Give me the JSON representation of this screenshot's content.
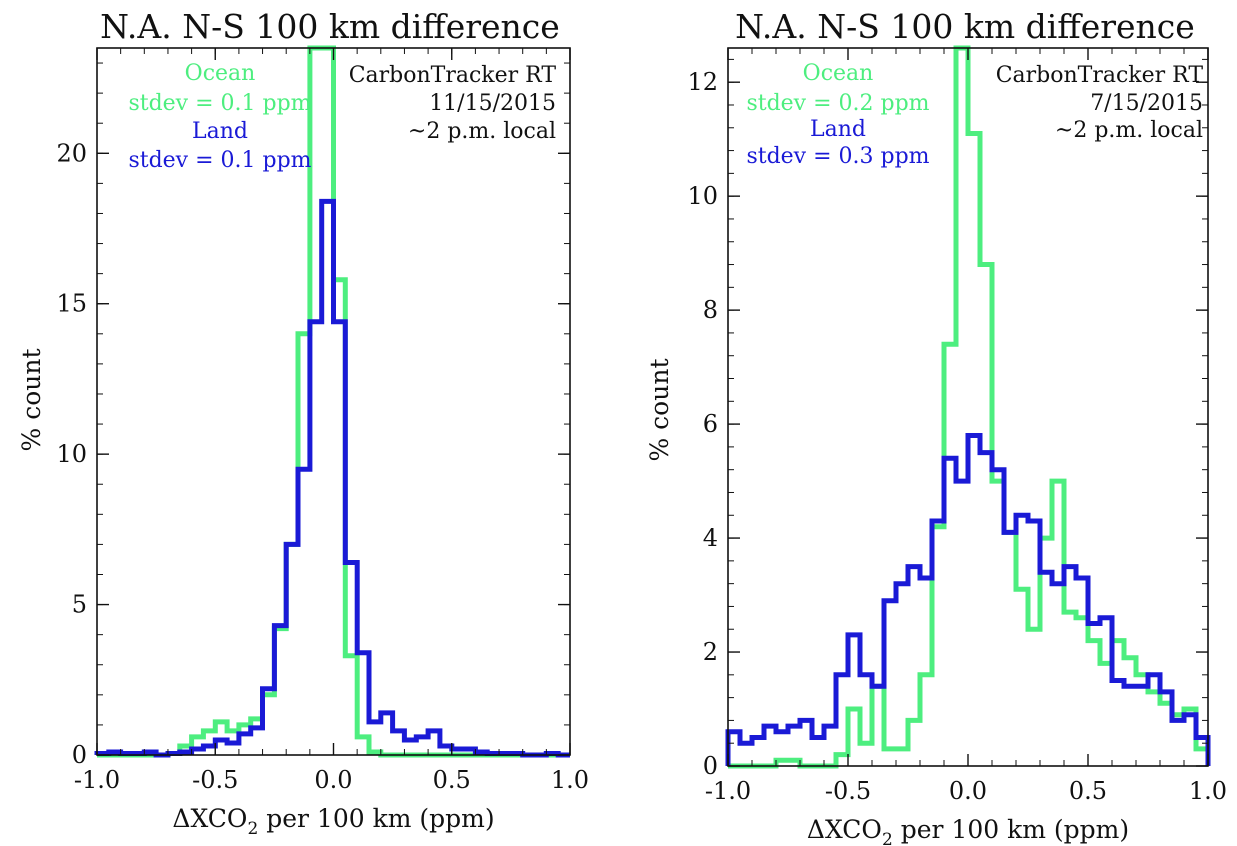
{
  "colors": {
    "ocean": "#4dee7f",
    "land": "#1a1ad6",
    "axis": "#111111"
  },
  "chart_data": [
    {
      "type": "line",
      "step": true,
      "title": "N.A. N-S 100 km difference",
      "xlabel_main": "ΔXCO",
      "xlabel_sub": "2",
      "xlabel_tail": " per 100 km (ppm)",
      "ylabel": "% count",
      "xlim": [
        -1.0,
        1.0
      ],
      "ylim": [
        0,
        23.5
      ],
      "xticks": [
        -1.0,
        -0.5,
        0.0,
        0.5,
        1.0
      ],
      "xtick_labels": [
        "-1.0",
        "-0.5",
        "0.0",
        "0.5",
        "1.0"
      ],
      "yticks": [
        0,
        5,
        10,
        15,
        20
      ],
      "ytick_labels": [
        "0",
        "5",
        "10",
        "15",
        "20"
      ],
      "annotations_left": [
        {
          "text": "Ocean",
          "series": "ocean"
        },
        {
          "text": "stdev = 0.1 ppm",
          "series": "ocean"
        },
        {
          "text": "Land",
          "series": "land"
        },
        {
          "text": "stdev = 0.1 ppm",
          "series": "land"
        }
      ],
      "annotations_right": [
        "CarbonTracker RT",
        "11/15/2015",
        "~2 p.m. local"
      ],
      "bin_edges": [
        -1.0,
        -0.95,
        -0.9,
        -0.85,
        -0.8,
        -0.75,
        -0.7,
        -0.65,
        -0.6,
        -0.55,
        -0.5,
        -0.45,
        -0.4,
        -0.35,
        -0.3,
        -0.25,
        -0.2,
        -0.15,
        -0.1,
        -0.05,
        0.0,
        0.05,
        0.1,
        0.15,
        0.2,
        0.25,
        0.3,
        0.35,
        0.4,
        0.45,
        0.5,
        0.55,
        0.6,
        0.65,
        0.7,
        0.75,
        0.8,
        0.85,
        0.9,
        0.95,
        1.0
      ],
      "series": [
        {
          "key": "ocean",
          "values": [
            0,
            0,
            0,
            0,
            0,
            0,
            0.05,
            0.3,
            0.6,
            0.8,
            1.1,
            0.8,
            1.0,
            1.2,
            2.0,
            4.2,
            7.0,
            14.0,
            23.5,
            23.5,
            15.8,
            3.3,
            0.6,
            0.1,
            0,
            0,
            0,
            0,
            0,
            0,
            0,
            0,
            0,
            0,
            0,
            0,
            0,
            0,
            0,
            0
          ]
        },
        {
          "key": "land",
          "values": [
            0.05,
            0.1,
            0.05,
            0.05,
            0.1,
            0,
            0.05,
            0.1,
            0.2,
            0.3,
            0.5,
            0.4,
            0.7,
            0.9,
            2.2,
            4.3,
            7.0,
            9.5,
            14.4,
            18.4,
            14.4,
            6.4,
            3.4,
            1.1,
            1.4,
            0.8,
            0.5,
            0.6,
            0.8,
            0.3,
            0.2,
            0.2,
            0.1,
            0.05,
            0.05,
            0.05,
            0,
            0,
            0.05,
            0
          ]
        }
      ]
    },
    {
      "type": "line",
      "step": true,
      "title": "N.A. N-S 100 km difference",
      "xlabel_main": "ΔXCO",
      "xlabel_sub": "2",
      "xlabel_tail": " per 100 km (ppm)",
      "ylabel": "% count",
      "xlim": [
        -1.0,
        1.0
      ],
      "ylim": [
        0,
        12.6
      ],
      "xticks": [
        -1.0,
        -0.5,
        0.0,
        0.5,
        1.0
      ],
      "xtick_labels": [
        "-1.0",
        "-0.5",
        "0.0",
        "0.5",
        "1.0"
      ],
      "yticks": [
        0,
        2,
        4,
        6,
        8,
        10,
        12
      ],
      "ytick_labels": [
        "0",
        "2",
        "4",
        "6",
        "8",
        "10",
        "12"
      ],
      "annotations_left": [
        {
          "text": "Ocean",
          "series": "ocean"
        },
        {
          "text": "stdev = 0.2 ppm",
          "series": "ocean"
        },
        {
          "text": "Land",
          "series": "land"
        },
        {
          "text": "stdev = 0.3 ppm",
          "series": "land"
        }
      ],
      "annotations_right": [
        "CarbonTracker RT",
        "7/15/2015",
        "~2 p.m. local"
      ],
      "bin_edges": [
        -1.0,
        -0.95,
        -0.9,
        -0.85,
        -0.8,
        -0.75,
        -0.7,
        -0.65,
        -0.6,
        -0.55,
        -0.5,
        -0.45,
        -0.4,
        -0.35,
        -0.3,
        -0.25,
        -0.2,
        -0.15,
        -0.1,
        -0.05,
        0.0,
        0.05,
        0.1,
        0.15,
        0.2,
        0.25,
        0.3,
        0.35,
        0.4,
        0.45,
        0.5,
        0.55,
        0.6,
        0.65,
        0.7,
        0.75,
        0.8,
        0.85,
        0.9,
        0.95,
        1.0
      ],
      "series": [
        {
          "key": "ocean",
          "values": [
            0,
            0,
            0,
            0,
            0.1,
            0.1,
            0,
            0,
            0,
            0.2,
            1.0,
            0.4,
            1.4,
            0.3,
            0.3,
            0.8,
            1.6,
            4.2,
            7.4,
            12.6,
            11.1,
            8.8,
            5.0,
            4.1,
            3.1,
            2.4,
            4.0,
            5.0,
            2.7,
            2.6,
            2.2,
            1.8,
            2.2,
            1.9,
            1.6,
            1.3,
            1.1,
            0.9,
            1.0,
            0.3
          ]
        },
        {
          "key": "land",
          "values": [
            0.6,
            0.4,
            0.5,
            0.7,
            0.6,
            0.7,
            0.8,
            0.5,
            0.7,
            1.6,
            2.3,
            1.6,
            1.4,
            2.9,
            3.2,
            3.5,
            3.3,
            4.3,
            5.4,
            5.0,
            5.8,
            5.5,
            5.2,
            4.1,
            4.4,
            4.3,
            3.4,
            3.2,
            3.5,
            3.3,
            2.5,
            2.6,
            1.5,
            1.4,
            1.4,
            1.6,
            1.3,
            0.8,
            0.9,
            0.5
          ]
        }
      ]
    }
  ]
}
